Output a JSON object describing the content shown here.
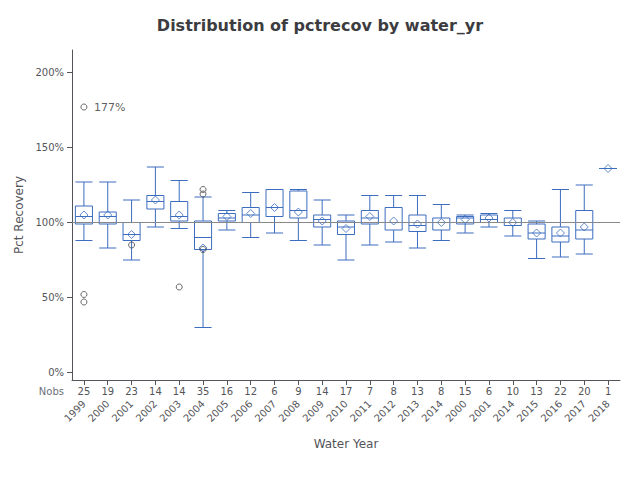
{
  "chart_data": {
    "type": "boxplot",
    "title": "Distribution of pctrecov by water_yr",
    "xlabel": "Water Year",
    "ylabel": "Pct Recovery",
    "categories": [
      "1999",
      "2000",
      "2001",
      "2002",
      "2003",
      "2004",
      "2005",
      "2006",
      "2007",
      "2008",
      "2009",
      "2010",
      "2011",
      "2012",
      "2013",
      "2014",
      "2000",
      "2001",
      "2014",
      "2015",
      "2016",
      "2017",
      "2018"
    ],
    "series": [
      {
        "type": "boxplot",
        "color": "#3c6dbf",
        "values": [
          {
            "whislo": 88,
            "q1": 99,
            "med": 104,
            "q3": 111,
            "whishi": 127
          },
          {
            "whislo": 83,
            "q1": 99,
            "med": 104,
            "q3": 107,
            "whishi": 127
          },
          {
            "whislo": 75,
            "q1": 88,
            "med": 92,
            "q3": 100,
            "whishi": 115
          },
          {
            "whislo": 97,
            "q1": 109,
            "med": 114,
            "q3": 118,
            "whishi": 137
          },
          {
            "whislo": 96,
            "q1": 101,
            "med": 104,
            "q3": 114,
            "whishi": 128
          },
          {
            "whislo": 30,
            "q1": 82,
            "med": 90,
            "q3": 101,
            "whishi": 117
          },
          {
            "whislo": 95,
            "q1": 101,
            "med": 103,
            "q3": 106,
            "whishi": 108
          },
          {
            "whislo": 90,
            "q1": 100,
            "med": 105,
            "q3": 110,
            "whishi": 120
          },
          {
            "whislo": 93,
            "q1": 104,
            "med": 110,
            "q3": 122,
            "whishi": 122
          },
          {
            "whislo": 88,
            "q1": 103,
            "med": 108,
            "q3": 121,
            "whishi": 122
          },
          {
            "whislo": 85,
            "q1": 97,
            "med": 102,
            "q3": 105,
            "whishi": 115
          },
          {
            "whislo": 75,
            "q1": 92,
            "med": 97,
            "q3": 101,
            "whishi": 105
          },
          {
            "whislo": 85,
            "q1": 99,
            "med": 103,
            "q3": 108,
            "whishi": 118
          },
          {
            "whislo": 87,
            "q1": 95,
            "med": 100,
            "q3": 110,
            "whishi": 118
          },
          {
            "whislo": 83,
            "q1": 94,
            "med": 98,
            "q3": 105,
            "whishi": 118
          },
          {
            "whislo": 88,
            "q1": 95,
            "med": 100,
            "q3": 103,
            "whishi": 112
          },
          {
            "whislo": 93,
            "q1": 99,
            "med": 103,
            "q3": 104,
            "whishi": 105
          },
          {
            "whislo": 97,
            "q1": 100,
            "med": 102,
            "q3": 105,
            "whishi": 106
          },
          {
            "whislo": 91,
            "q1": 98,
            "med": 100,
            "q3": 103,
            "whishi": 108
          },
          {
            "whislo": 76,
            "q1": 89,
            "med": 93,
            "q3": 99,
            "whishi": 101
          },
          {
            "whislo": 77,
            "q1": 87,
            "med": 91,
            "q3": 97,
            "whishi": 122
          },
          {
            "whislo": 79,
            "q1": 89,
            "med": 95,
            "q3": 108,
            "whishi": 125
          },
          {
            "whislo": 136,
            "q1": 136,
            "med": 136,
            "q3": 136,
            "whishi": 136
          }
        ]
      },
      {
        "type": "scatter",
        "marker": "diamond",
        "color": "#3c6dbf",
        "values": [
          105,
          105,
          92,
          115,
          105,
          83,
          104,
          106,
          110,
          107,
          101,
          96,
          104,
          101,
          99,
          100,
          102,
          103,
          100,
          93,
          93,
          97,
          136
        ]
      },
      {
        "type": "scatter",
        "marker": "circle",
        "color": "#444444",
        "values": [
          [
            177,
            52,
            47
          ],
          [],
          [
            85
          ],
          [],
          [
            57
          ],
          [
            119,
            122,
            82
          ],
          [],
          [],
          [],
          [],
          [],
          [],
          [],
          [],
          [],
          [],
          [],
          [],
          [],
          [],
          [],
          [],
          []
        ]
      }
    ],
    "nobs": {
      "label": "Nobs",
      "values": [
        25,
        19,
        23,
        14,
        14,
        35,
        16,
        12,
        6,
        9,
        14,
        17,
        7,
        8,
        13,
        8,
        15,
        6,
        10,
        13,
        22,
        20,
        1
      ]
    },
    "ref_line": {
      "y": 100,
      "color": "#888888"
    },
    "annotations": [
      {
        "text": "177%",
        "x": "1999",
        "y": 177
      }
    ],
    "ylim": [
      -5,
      215
    ],
    "yticks": [
      {
        "value": 0,
        "label": "0%"
      },
      {
        "value": 50,
        "label": "50%"
      },
      {
        "value": 100,
        "label": "100%"
      },
      {
        "value": 150,
        "label": "150%"
      },
      {
        "value": 200,
        "label": "200%"
      }
    ],
    "grid": false
  }
}
